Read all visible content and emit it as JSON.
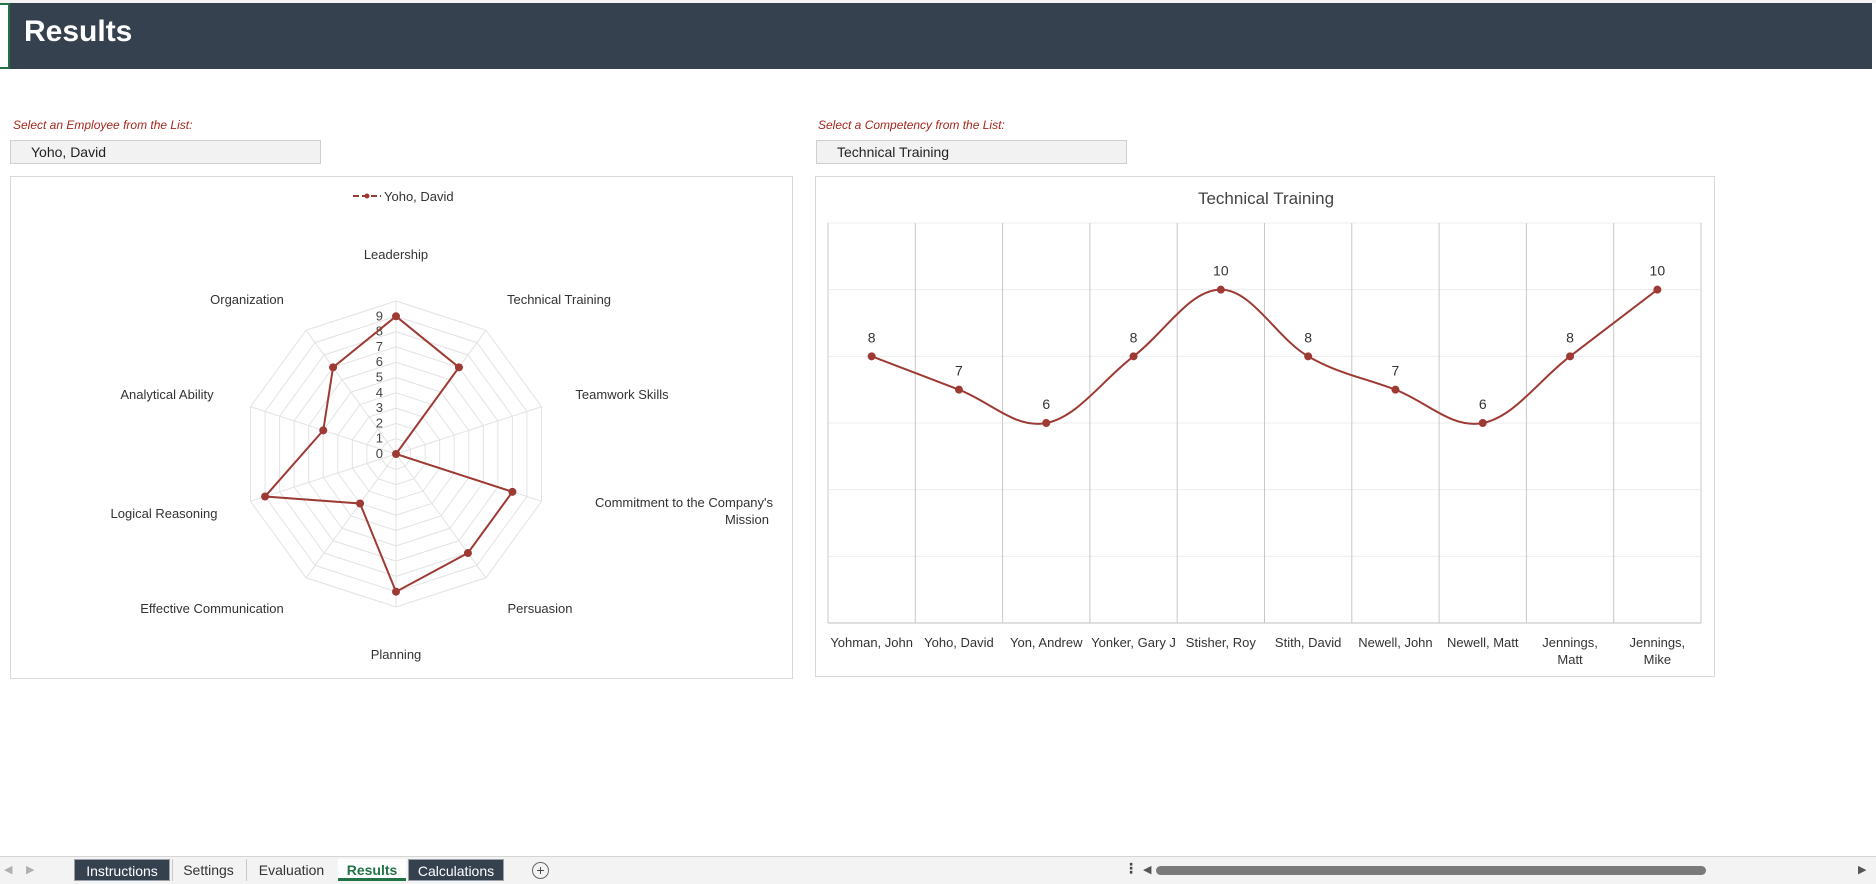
{
  "header": {
    "title": "Results"
  },
  "employee_selector": {
    "prompt": "Select an Employee from the List:",
    "value": "Yoho, David"
  },
  "competency_selector": {
    "prompt": "Select a Competency from the List:",
    "value": "Technical Training"
  },
  "chart_data": [
    {
      "type": "radar",
      "title": "",
      "series": [
        {
          "name": "Yoho, David",
          "values": [
            9,
            7,
            0,
            8,
            8,
            9,
            4,
            9,
            5,
            7
          ]
        }
      ],
      "categories": [
        "Leadership",
        "Technical Training",
        "Teamwork Skills",
        "Commitment to the Company's Mission",
        "Persuasion",
        "Planning",
        "Effective Communication",
        "Logical Reasoning",
        "Analytical Ability",
        "Organization"
      ],
      "ticks": [
        "0",
        "1",
        "2",
        "3",
        "4",
        "5",
        "6",
        "7",
        "8",
        "9"
      ],
      "rmax": 10,
      "legend": "top",
      "color": "#9e3a34"
    },
    {
      "type": "line",
      "title": "Technical Training",
      "categories": [
        "Yohman, John",
        "Yoho, David",
        "Yon, Andrew",
        "Yonker, Gary J",
        "Stisher, Roy",
        "Stith, David",
        "Newell, John",
        "Newell, Matt",
        "Jennings, Matt",
        "Jennings, Mike"
      ],
      "values": [
        8,
        7,
        6,
        8,
        10,
        8,
        7,
        6,
        8,
        10
      ],
      "labels": [
        "8",
        "7",
        "6",
        "8",
        "10",
        "8",
        "7",
        "6",
        "8",
        "10"
      ],
      "ylim": [
        0,
        12
      ],
      "smooth": true,
      "color": "#9e3a34"
    }
  ],
  "sheet_tabs": {
    "items": [
      {
        "label": "Instructions",
        "style": "dark"
      },
      {
        "label": "Settings",
        "style": "plain"
      },
      {
        "label": "Evaluation",
        "style": "plain"
      },
      {
        "label": "Results",
        "style": "active"
      },
      {
        "label": "Calculations",
        "style": "dark"
      }
    ]
  }
}
